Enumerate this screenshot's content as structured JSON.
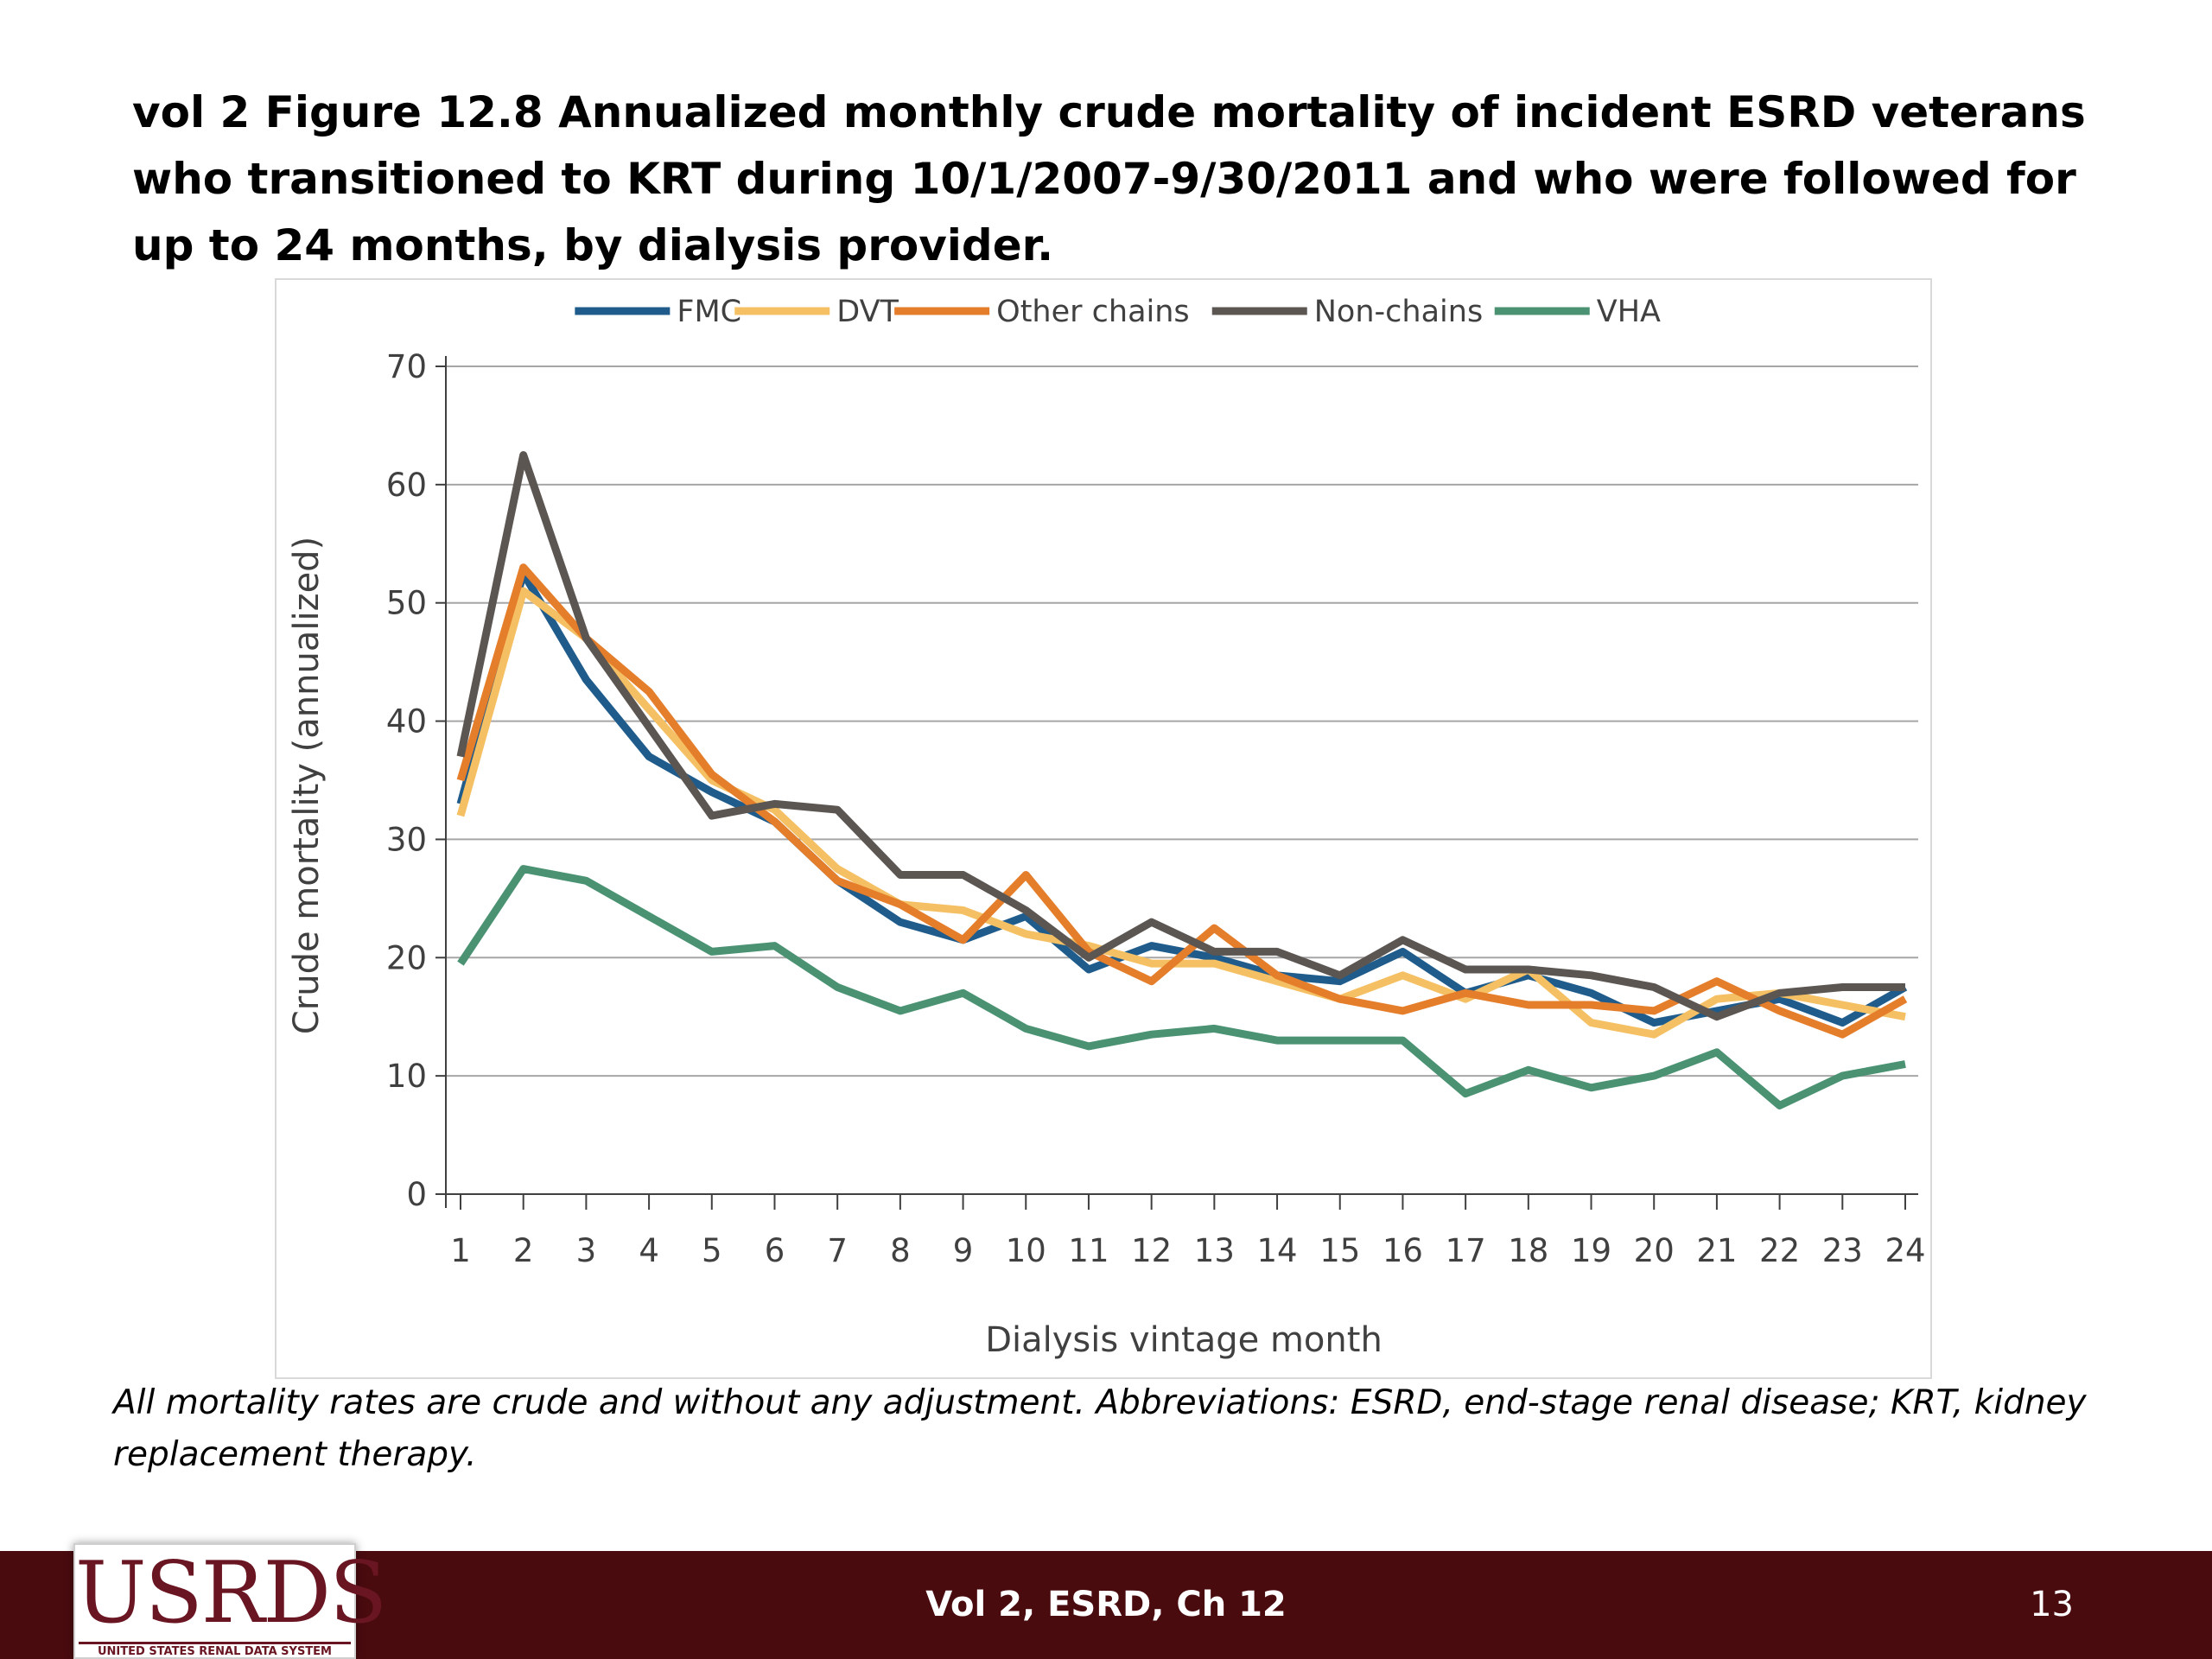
{
  "slide": {
    "title": "vol 2 Figure 12.8  Annualized monthly crude mortality of incident ESRD veterans who transitioned to KRT during 10/1/2007-9/30/2011 and who were followed for up to 24 months, by dialysis provider.",
    "footnote": "All mortality rates are crude and without any adjustment. Abbreviations: ESRD, end-stage renal disease; KRT, kidney replacement therapy."
  },
  "footer": {
    "logo_text": "USRDS",
    "logo_subtitle": "UNITED STATES RENAL DATA SYSTEM",
    "center_text": "Vol 2, ESRD, Ch 12",
    "page_number": "13",
    "bar_color": "#4a0b0f"
  },
  "chart_data": {
    "type": "line",
    "title": "",
    "xlabel": "Dialysis vintage month",
    "ylabel": "Crude mortality (annualized)",
    "ylim": [
      0,
      70
    ],
    "yticks": [
      0,
      10,
      20,
      30,
      40,
      50,
      60,
      70
    ],
    "grid": "horizontal",
    "legend_position": "top",
    "x": [
      1,
      2,
      3,
      4,
      5,
      6,
      7,
      8,
      9,
      10,
      11,
      12,
      13,
      14,
      15,
      16,
      17,
      18,
      19,
      20,
      21,
      22,
      23,
      24
    ],
    "series": [
      {
        "name": "FMC",
        "color": "#1f5c8c",
        "values": [
          33,
          52.5,
          43.5,
          37,
          34,
          31.5,
          26.5,
          23,
          21.5,
          23.5,
          19,
          21,
          20,
          18.5,
          18,
          20.5,
          17,
          18.5,
          17,
          14.5,
          15.5,
          16.5,
          14.5,
          17.5
        ]
      },
      {
        "name": "DVT",
        "color": "#f5c063",
        "values": [
          32,
          51,
          47,
          41,
          35,
          32.5,
          27.5,
          24.5,
          24,
          22,
          21,
          19.5,
          19.5,
          18,
          16.5,
          18.5,
          16.5,
          19,
          14.5,
          13.5,
          16.5,
          17,
          16,
          15
        ]
      },
      {
        "name": "Other chains",
        "color": "#e57e2b",
        "values": [
          35,
          53,
          47,
          42.5,
          35.5,
          31.5,
          26.5,
          24.5,
          21.5,
          27,
          20.5,
          18,
          22.5,
          18.5,
          16.5,
          15.5,
          17,
          16,
          16,
          15.5,
          18,
          15.5,
          13.5,
          16.5
        ]
      },
      {
        "name": "Non-chains",
        "color": "#5c5652",
        "values": [
          37,
          62.5,
          47,
          39.5,
          32,
          33,
          32.5,
          27,
          27,
          24,
          20,
          23,
          20.5,
          20.5,
          18.5,
          21.5,
          19,
          19,
          18.5,
          17.5,
          15,
          17,
          17.5,
          17.5
        ]
      },
      {
        "name": "VHA",
        "color": "#4a9272",
        "values": [
          19.5,
          27.5,
          26.5,
          23.5,
          20.5,
          21,
          17.5,
          15.5,
          17,
          14,
          12.5,
          13.5,
          14,
          13,
          13,
          13,
          8.5,
          10.5,
          9,
          10,
          12,
          7.5,
          10,
          11
        ]
      }
    ]
  }
}
